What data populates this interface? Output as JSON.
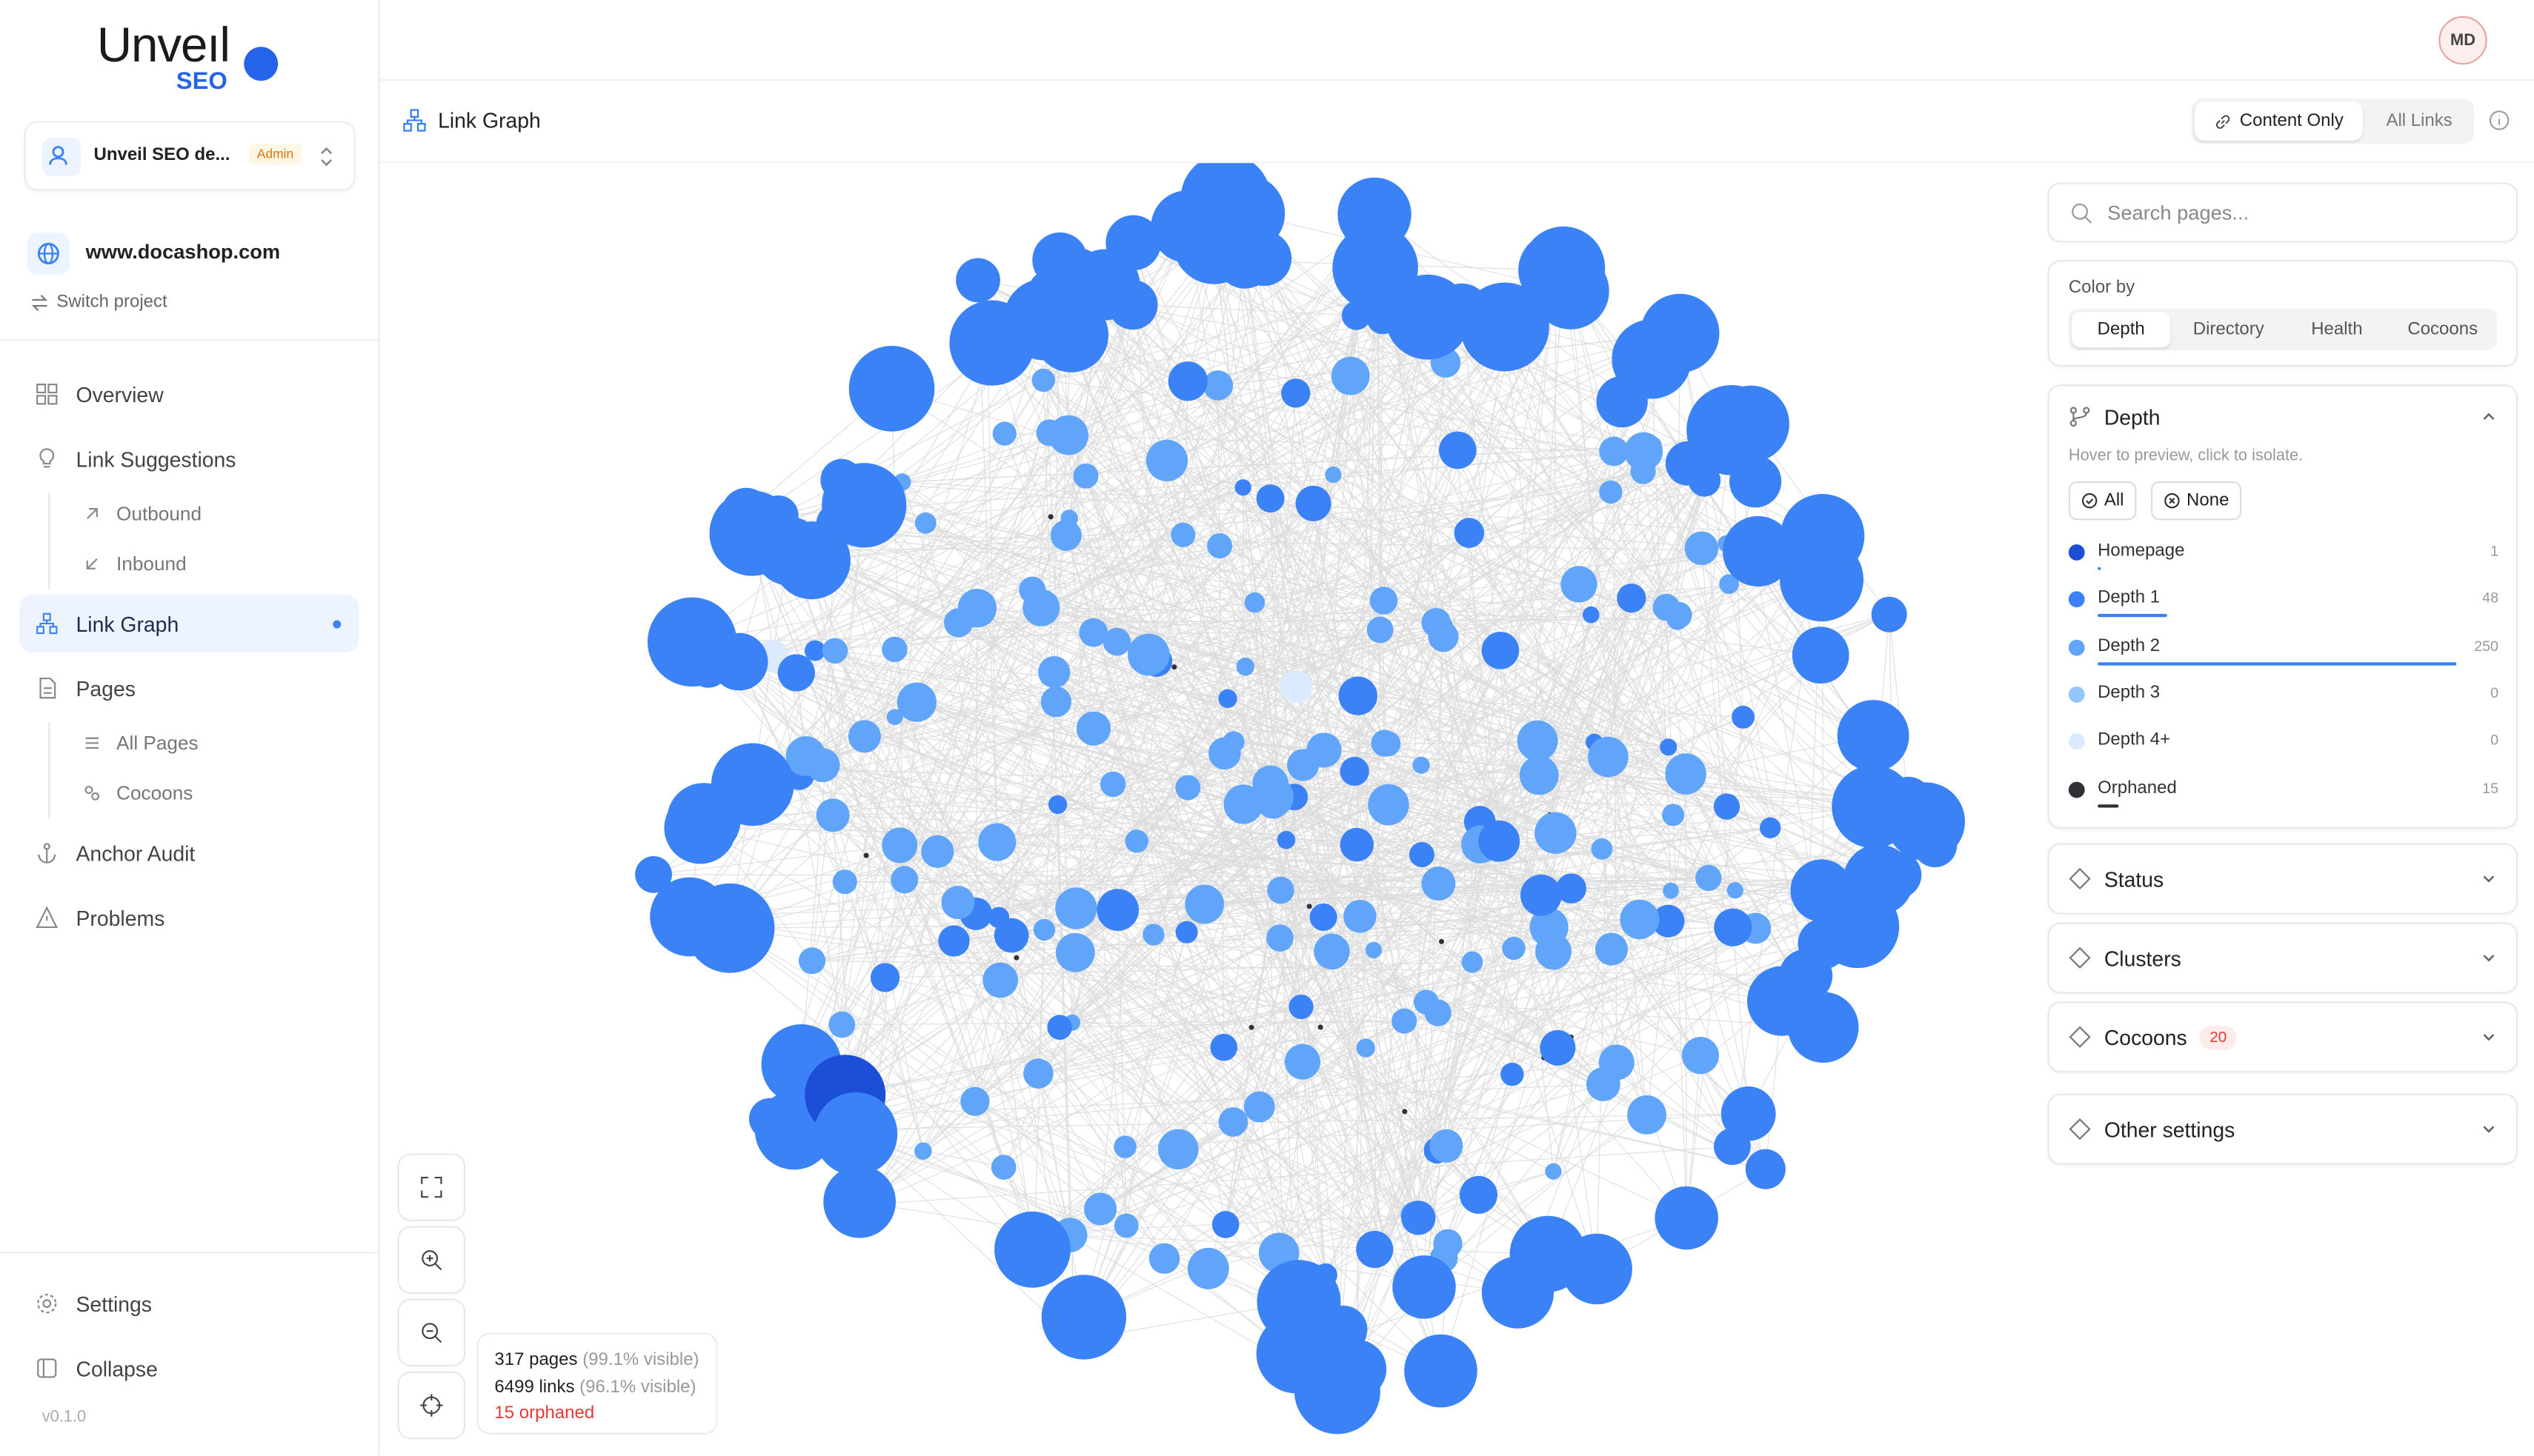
{
  "sidebar": {
    "logo": {
      "name": "Unveıl",
      "sub": "SEO"
    },
    "workspace": {
      "name": "Unveil SEO de...",
      "role": "Admin"
    },
    "project": {
      "domain": "www.docashop.com",
      "switch": "Switch project"
    },
    "nav": {
      "overview": "Overview",
      "link_suggestions": "Link Suggestions",
      "outbound": "Outbound",
      "inbound": "Inbound",
      "link_graph": "Link Graph",
      "pages": "Pages",
      "all_pages": "All Pages",
      "cocoons": "Cocoons",
      "anchor_audit": "Anchor Audit",
      "problems": "Problems"
    },
    "footer": {
      "settings": "Settings",
      "collapse": "Collapse",
      "version": "v0.1.0"
    }
  },
  "header": {
    "avatar": "MD",
    "title": "Link Graph",
    "toggle": [
      "Content Only",
      "All Links"
    ]
  },
  "panel": {
    "search": "Search pages...",
    "color_by": {
      "label": "Color by",
      "options": [
        "Depth",
        "Directory",
        "Health",
        "Cocoons"
      ]
    },
    "depth": {
      "title": "Depth",
      "hint": "Hover to preview, click to isolate.",
      "all": "All",
      "none": "None",
      "items": [
        {
          "name": "Homepage",
          "count": 1,
          "color": "#1d4ed8"
        },
        {
          "name": "Depth 1",
          "count": 48,
          "color": "#3b82f6"
        },
        {
          "name": "Depth 2",
          "count": 250,
          "color": "#60a5fa"
        },
        {
          "name": "Depth 3",
          "count": 0,
          "color": "#93c5fd"
        },
        {
          "name": "Depth 4+",
          "count": 0,
          "color": "#dbeafe"
        },
        {
          "name": "Orphaned",
          "count": 15,
          "color": "#2f3136"
        }
      ]
    },
    "sections": [
      {
        "title": "Status"
      },
      {
        "title": "Clusters"
      },
      {
        "title": "Cocoons",
        "badge": 20
      },
      {
        "title": "Other settings"
      }
    ]
  },
  "stats": {
    "pages": "317 pages",
    "pages_visible": "(99.1% visible)",
    "links": "6499 links",
    "links_visible": "(96.1% visible)",
    "orphaned": "15 orphaned"
  }
}
